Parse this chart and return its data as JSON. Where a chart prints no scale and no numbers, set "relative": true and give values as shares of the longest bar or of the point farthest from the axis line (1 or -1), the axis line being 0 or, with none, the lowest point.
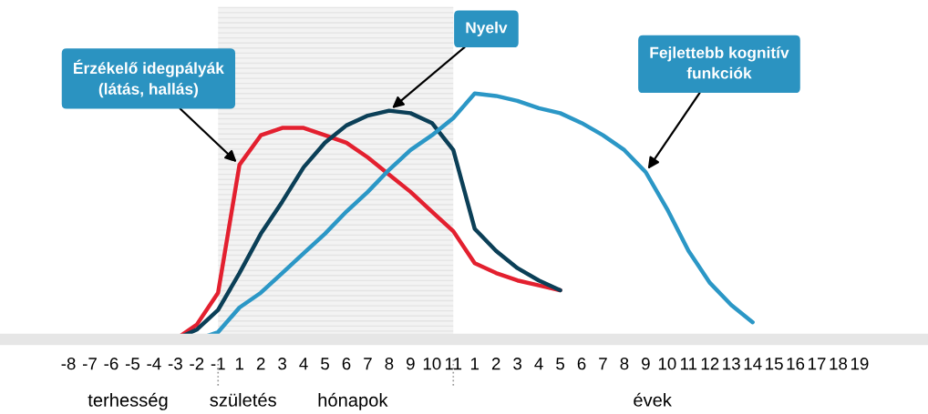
{
  "chart_data": {
    "type": "line",
    "relative": true,
    "categories": [
      "-8",
      "-7",
      "-6",
      "-5",
      "-4",
      "-3",
      "-2",
      "-1",
      "1",
      "2",
      "3",
      "4",
      "5",
      "6",
      "7",
      "8",
      "9",
      "10",
      "11",
      "1",
      "2",
      "3",
      "4",
      "5",
      "6",
      "7",
      "8",
      "9",
      "10",
      "11",
      "12",
      "13",
      "14",
      "15",
      "16",
      "17",
      "18",
      "19"
    ],
    "series": [
      {
        "name": "Érzékelő idegpályák\n(látás, hallás)",
        "color": "#e3202f",
        "values": [
          null,
          null,
          null,
          null,
          null,
          0,
          0.06,
          0.19,
          0.71,
          0.83,
          0.86,
          0.86,
          0.83,
          0.8,
          0.74,
          0.67,
          0.6,
          0.52,
          0.44,
          0.31,
          0.27,
          0.24,
          0.22,
          0.2,
          null,
          null,
          null,
          null,
          null,
          null,
          null,
          null,
          null,
          null,
          null,
          null,
          null,
          null
        ]
      },
      {
        "name": "Nyelv",
        "color": "#0b3f57",
        "values": [
          null,
          null,
          null,
          null,
          null,
          0,
          0.04,
          0.12,
          0.27,
          0.43,
          0.56,
          0.7,
          0.8,
          0.87,
          0.91,
          0.93,
          0.92,
          0.88,
          0.77,
          0.45,
          0.36,
          0.29,
          0.24,
          0.2,
          null,
          null,
          null,
          null,
          null,
          null,
          null,
          null,
          null,
          null,
          null,
          null,
          null,
          null
        ]
      },
      {
        "name": "Fejlettebb kognitív\nfunkciók",
        "color": "#2b97c6",
        "values": [
          null,
          null,
          null,
          null,
          null,
          null,
          0,
          0.03,
          0.13,
          0.19,
          0.27,
          0.35,
          0.43,
          0.52,
          0.6,
          0.69,
          0.77,
          0.83,
          0.9,
          1,
          0.99,
          0.97,
          0.94,
          0.92,
          0.88,
          0.83,
          0.77,
          0.68,
          0.53,
          0.36,
          0.23,
          0.14,
          0.07,
          null,
          null,
          null,
          null,
          null
        ]
      }
    ],
    "bands": [
      {
        "axis": "x",
        "from": "-1",
        "to": "11",
        "color": "#e4e4e4"
      }
    ],
    "annotations": [
      "terhesség",
      "születés",
      "hónapok",
      "évek"
    ],
    "legend": false,
    "grid": false
  }
}
